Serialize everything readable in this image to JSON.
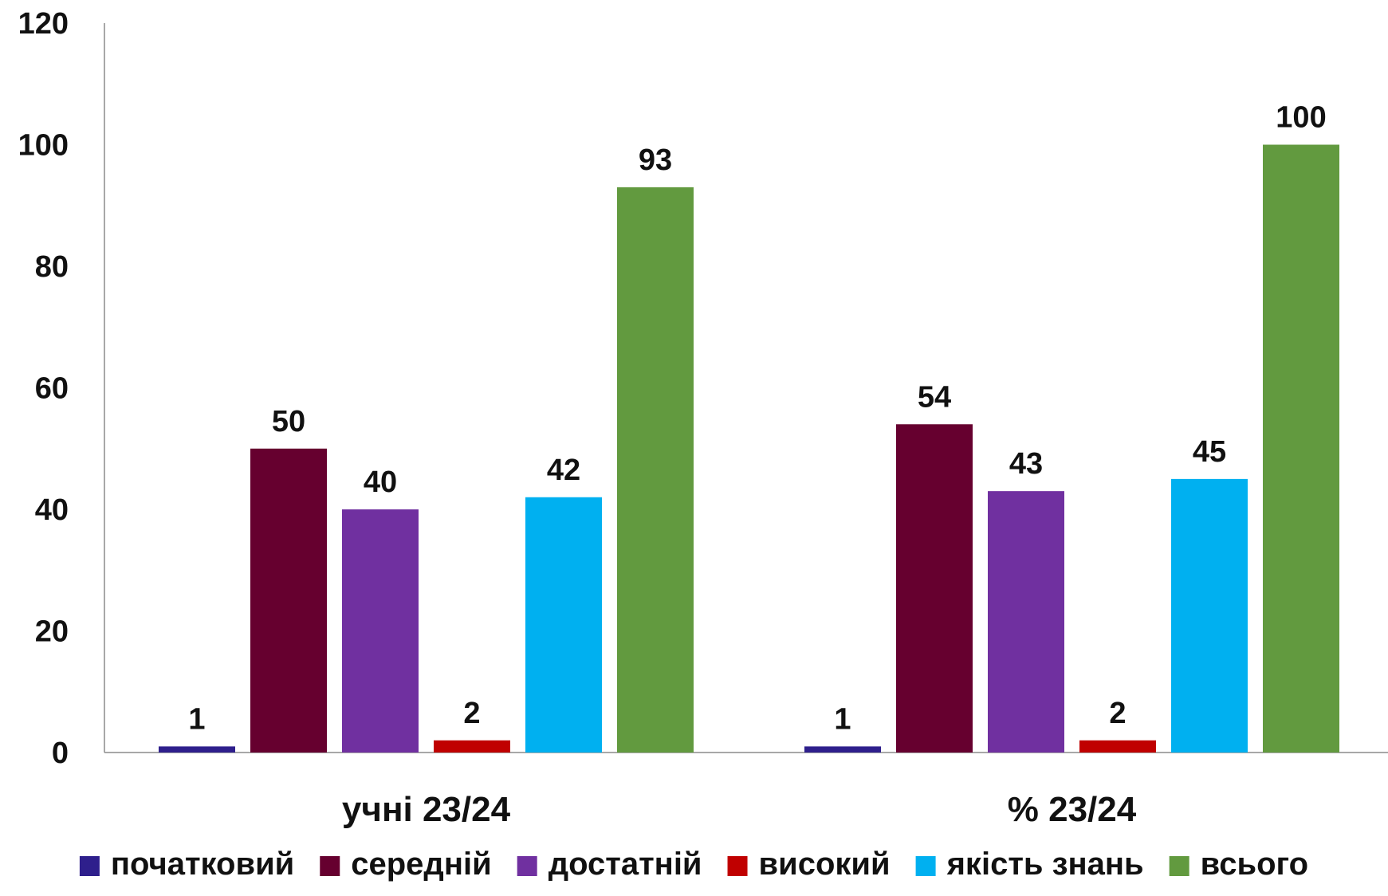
{
  "chart_data": {
    "type": "bar",
    "categories": [
      "учні 23/24",
      "% 23/24"
    ],
    "series": [
      {
        "name": "початковий",
        "color": "#2E1F8C",
        "values": [
          1,
          1
        ]
      },
      {
        "name": "середній",
        "color": "#66002F",
        "values": [
          50,
          54
        ]
      },
      {
        "name": "достатній",
        "color": "#7030A0",
        "values": [
          40,
          43
        ]
      },
      {
        "name": "високий",
        "color": "#C00000",
        "values": [
          2,
          2
        ]
      },
      {
        "name": "якість знань",
        "color": "#00B0F0",
        "values": [
          42,
          45
        ]
      },
      {
        "name": "всього",
        "color": "#629A3F",
        "values": [
          93,
          100
        ]
      }
    ],
    "y_ticks": [
      "0",
      "20",
      "40",
      "60",
      "80",
      "100",
      "120"
    ],
    "ylim": [
      0,
      120
    ],
    "grid": false,
    "data_labels": true,
    "legend_position": "bottom"
  }
}
